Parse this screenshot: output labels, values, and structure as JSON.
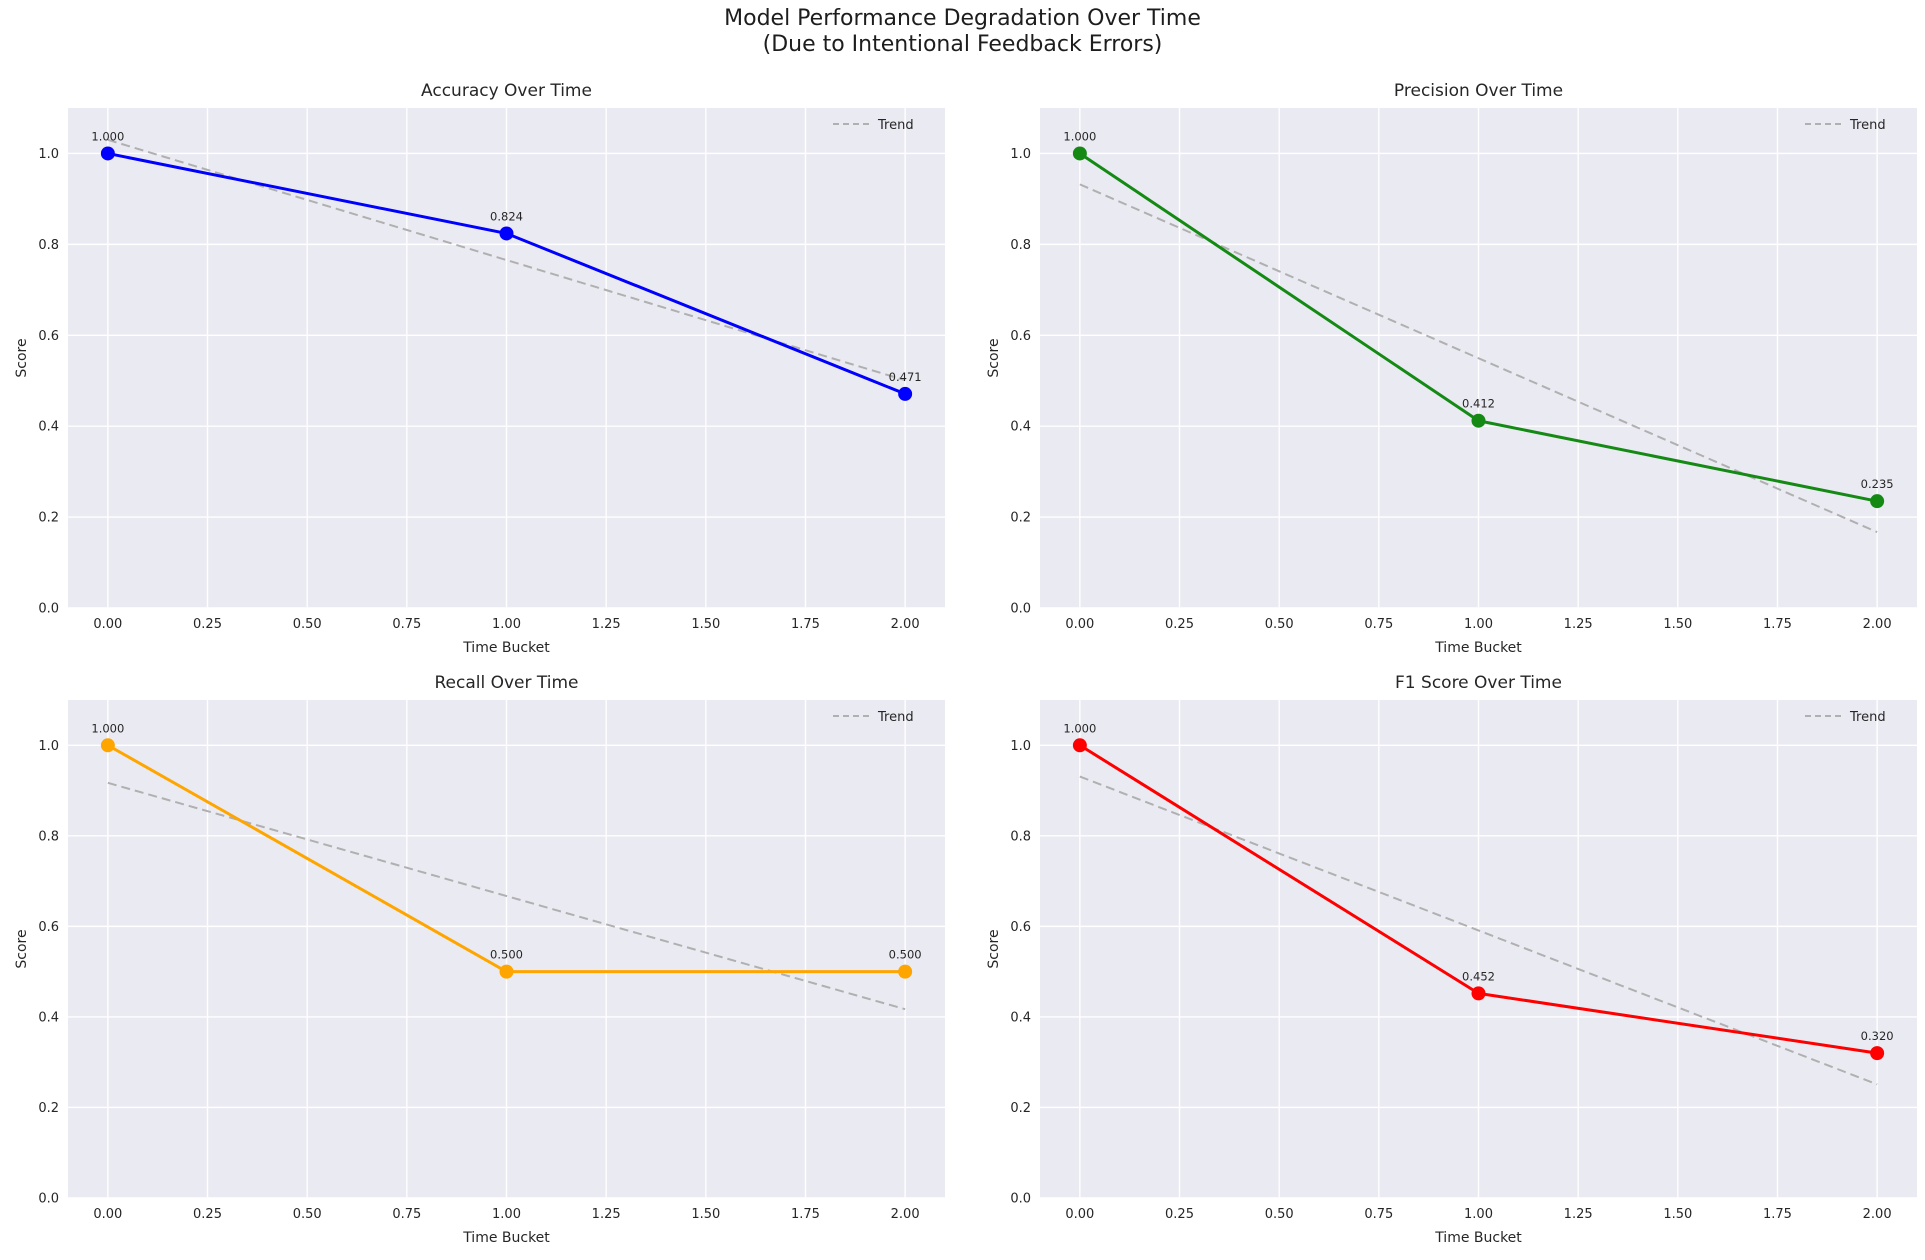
{
  "figure": {
    "suptitle_line1": "Model Performance Degradation Over Time",
    "suptitle_line2": "(Due to Intentional Feedback Errors)",
    "plot_bg_color": "#eaeaf2",
    "grid_color": "#ffffff",
    "text_color": "#262626"
  },
  "chart_data": [
    {
      "type": "line",
      "title": "Accuracy Over Time",
      "xlabel": "Time Bucket",
      "ylabel": "Score",
      "legend": [
        "Trend"
      ],
      "legend_position": "upper right",
      "x": [
        0,
        1,
        2
      ],
      "values": [
        1.0,
        0.824,
        0.471
      ],
      "point_labels": [
        "1.000",
        "0.824",
        "0.471"
      ],
      "trend": {
        "x": [
          0,
          2
        ],
        "y": [
          1.03,
          0.501
        ]
      },
      "color": "#0000ff",
      "trend_color": "#b0b0b0",
      "xlim": [
        -0.1,
        2.1
      ],
      "ylim": [
        0,
        1.1
      ],
      "grid": true,
      "xtick_values": [
        0,
        0.25,
        0.5,
        0.75,
        1,
        1.25,
        1.5,
        1.75,
        2
      ],
      "xticks": [
        "0.00",
        "0.25",
        "0.50",
        "0.75",
        "1.00",
        "1.25",
        "1.50",
        "1.75",
        "2.00"
      ],
      "ytick_values": [
        0,
        0.2,
        0.4,
        0.6,
        0.8,
        1.0
      ],
      "yticks": [
        "0.0",
        "0.2",
        "0.4",
        "0.6",
        "0.8",
        "1.0"
      ]
    },
    {
      "type": "line",
      "title": "Precision Over Time",
      "xlabel": "Time Bucket",
      "ylabel": "Score",
      "legend": [
        "Trend"
      ],
      "legend_position": "upper right",
      "x": [
        0,
        1,
        2
      ],
      "values": [
        1.0,
        0.412,
        0.235
      ],
      "point_labels": [
        "1.000",
        "0.412",
        "0.235"
      ],
      "trend": {
        "x": [
          0,
          2
        ],
        "y": [
          0.932,
          0.167
        ]
      },
      "color": "#148a14",
      "trend_color": "#b0b0b0",
      "xlim": [
        -0.1,
        2.1
      ],
      "ylim": [
        0,
        1.1
      ],
      "grid": true,
      "xtick_values": [
        0,
        0.25,
        0.5,
        0.75,
        1,
        1.25,
        1.5,
        1.75,
        2
      ],
      "xticks": [
        "0.00",
        "0.25",
        "0.50",
        "0.75",
        "1.00",
        "1.25",
        "1.50",
        "1.75",
        "2.00"
      ],
      "ytick_values": [
        0,
        0.2,
        0.4,
        0.6,
        0.8,
        1.0
      ],
      "yticks": [
        "0.0",
        "0.2",
        "0.4",
        "0.6",
        "0.8",
        "1.0"
      ]
    },
    {
      "type": "line",
      "title": "Recall Over Time",
      "xlabel": "Time Bucket",
      "ylabel": "Score",
      "legend": [
        "Trend"
      ],
      "legend_position": "upper right",
      "x": [
        0,
        1,
        2
      ],
      "values": [
        1.0,
        0.5,
        0.5
      ],
      "point_labels": [
        "1.000",
        "0.500",
        "0.500"
      ],
      "trend": {
        "x": [
          0,
          2
        ],
        "y": [
          0.917,
          0.417
        ]
      },
      "color": "#ffa500",
      "trend_color": "#b0b0b0",
      "xlim": [
        -0.1,
        2.1
      ],
      "ylim": [
        0,
        1.1
      ],
      "grid": true,
      "xtick_values": [
        0,
        0.25,
        0.5,
        0.75,
        1,
        1.25,
        1.5,
        1.75,
        2
      ],
      "xticks": [
        "0.00",
        "0.25",
        "0.50",
        "0.75",
        "1.00",
        "1.25",
        "1.50",
        "1.75",
        "2.00"
      ],
      "ytick_values": [
        0,
        0.2,
        0.4,
        0.6,
        0.8,
        1.0
      ],
      "yticks": [
        "0.0",
        "0.2",
        "0.4",
        "0.6",
        "0.8",
        "1.0"
      ]
    },
    {
      "type": "line",
      "title": "F1 Score Over Time",
      "xlabel": "Time Bucket",
      "ylabel": "Score",
      "legend": [
        "Trend"
      ],
      "legend_position": "upper right",
      "x": [
        0,
        1,
        2
      ],
      "values": [
        1.0,
        0.452,
        0.32
      ],
      "point_labels": [
        "1.000",
        "0.452",
        "0.320"
      ],
      "trend": {
        "x": [
          0,
          2
        ],
        "y": [
          0.931,
          0.251
        ]
      },
      "color": "#ff0000",
      "trend_color": "#b0b0b0",
      "xlim": [
        -0.1,
        2.1
      ],
      "ylim": [
        0,
        1.1
      ],
      "grid": true,
      "xtick_values": [
        0,
        0.25,
        0.5,
        0.75,
        1,
        1.25,
        1.5,
        1.75,
        2
      ],
      "xticks": [
        "0.00",
        "0.25",
        "0.50",
        "0.75",
        "1.00",
        "1.25",
        "1.50",
        "1.75",
        "2.00"
      ],
      "ytick_values": [
        0,
        0.2,
        0.4,
        0.6,
        0.8,
        1.0
      ],
      "yticks": [
        "0.0",
        "0.2",
        "0.4",
        "0.6",
        "0.8",
        "1.0"
      ]
    }
  ]
}
